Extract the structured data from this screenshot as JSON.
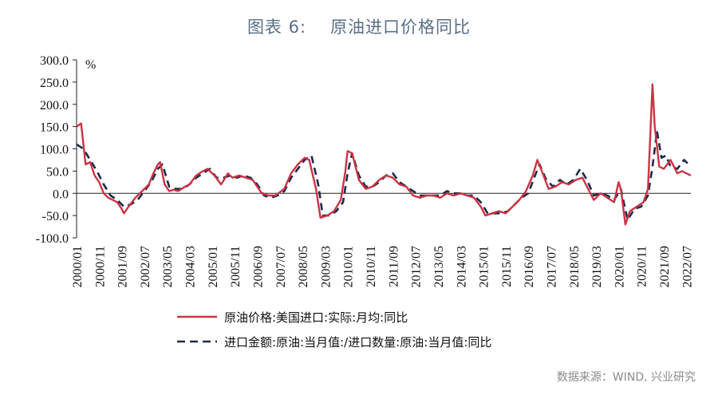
{
  "title": {
    "prefix": "图表 6:",
    "text": "原油进口价格同比"
  },
  "source": "数据来源：WIND, 兴业研究",
  "chart_data": {
    "type": "line",
    "ylabel": "%",
    "ylim": [
      -100,
      300
    ],
    "yticks": [
      "300.0",
      "250.0",
      "200.0",
      "150.0",
      "100.0",
      "50.0",
      "0.0",
      "-50.0",
      "-100.0"
    ],
    "xticks": [
      "2000/01",
      "2000/11",
      "2001/09",
      "2002/07",
      "2003/05",
      "2004/03",
      "2005/01",
      "2005/11",
      "2006/09",
      "2007/07",
      "2008/05",
      "2009/03",
      "2010/01",
      "2010/11",
      "2011/09",
      "2012/07",
      "2013/05",
      "2014/03",
      "2015/01",
      "2015/11",
      "2016/09",
      "2017/07",
      "2018/05",
      "2019/03",
      "2020/01",
      "2020/11",
      "2021/09",
      "2022/07"
    ],
    "series": [
      {
        "name": "原油价格:美国进口:实际:月均:同比",
        "color": "#cc3344",
        "style": "solid",
        "points": [
          [
            "2000/01",
            150
          ],
          [
            "2000/03",
            157
          ],
          [
            "2000/05",
            65
          ],
          [
            "2000/07",
            70
          ],
          [
            "2000/09",
            40
          ],
          [
            "2000/11",
            25
          ],
          [
            "2001/01",
            0
          ],
          [
            "2001/03",
            -10
          ],
          [
            "2001/05",
            -15
          ],
          [
            "2001/07",
            -20
          ],
          [
            "2001/09",
            -35
          ],
          [
            "2001/10",
            -45
          ],
          [
            "2001/12",
            -30
          ],
          [
            "2002/03",
            -10
          ],
          [
            "2002/06",
            5
          ],
          [
            "2002/09",
            20
          ],
          [
            "2002/11",
            45
          ],
          [
            "2003/01",
            65
          ],
          [
            "2003/02",
            70
          ],
          [
            "2003/04",
            20
          ],
          [
            "2003/06",
            5
          ],
          [
            "2003/08",
            8
          ],
          [
            "2003/10",
            5
          ],
          [
            "2004/01",
            15
          ],
          [
            "2004/03",
            20
          ],
          [
            "2004/06",
            40
          ],
          [
            "2004/09",
            50
          ],
          [
            "2004/11",
            55
          ],
          [
            "2005/02",
            40
          ],
          [
            "2005/05",
            20
          ],
          [
            "2005/08",
            45
          ],
          [
            "2005/10",
            35
          ],
          [
            "2006/01",
            40
          ],
          [
            "2006/04",
            35
          ],
          [
            "2006/07",
            30
          ],
          [
            "2006/09",
            15
          ],
          [
            "2006/11",
            0
          ],
          [
            "2007/02",
            -5
          ],
          [
            "2007/05",
            -5
          ],
          [
            "2007/09",
            10
          ],
          [
            "2007/12",
            45
          ],
          [
            "2008/03",
            65
          ],
          [
            "2008/06",
            80
          ],
          [
            "2008/08",
            75
          ],
          [
            "2008/11",
            10
          ],
          [
            "2009/01",
            -55
          ],
          [
            "2009/04",
            -50
          ],
          [
            "2009/07",
            -40
          ],
          [
            "2009/10",
            -15
          ],
          [
            "2009/12",
            50
          ],
          [
            "2010/01",
            95
          ],
          [
            "2010/03",
            90
          ],
          [
            "2010/06",
            30
          ],
          [
            "2010/09",
            10
          ],
          [
            "2010/12",
            15
          ],
          [
            "2011/03",
            30
          ],
          [
            "2011/06",
            40
          ],
          [
            "2011/09",
            35
          ],
          [
            "2011/12",
            20
          ],
          [
            "2012/03",
            15
          ],
          [
            "2012/06",
            -5
          ],
          [
            "2012/09",
            -10
          ],
          [
            "2012/12",
            -5
          ],
          [
            "2013/03",
            -5
          ],
          [
            "2013/06",
            -10
          ],
          [
            "2013/09",
            0
          ],
          [
            "2013/12",
            -5
          ],
          [
            "2014/03",
            0
          ],
          [
            "2014/06",
            -5
          ],
          [
            "2014/09",
            -10
          ],
          [
            "2014/12",
            -30
          ],
          [
            "2015/02",
            -50
          ],
          [
            "2015/05",
            -45
          ],
          [
            "2015/08",
            -40
          ],
          [
            "2015/11",
            -45
          ],
          [
            "2016/02",
            -30
          ],
          [
            "2016/05",
            -15
          ],
          [
            "2016/08",
            5
          ],
          [
            "2016/11",
            40
          ],
          [
            "2017/01",
            75
          ],
          [
            "2017/03",
            50
          ],
          [
            "2017/06",
            10
          ],
          [
            "2017/09",
            15
          ],
          [
            "2017/12",
            25
          ],
          [
            "2018/03",
            20
          ],
          [
            "2018/06",
            30
          ],
          [
            "2018/09",
            35
          ],
          [
            "2018/12",
            5
          ],
          [
            "2019/02",
            -15
          ],
          [
            "2019/05",
            0
          ],
          [
            "2019/08",
            -10
          ],
          [
            "2019/11",
            -20
          ],
          [
            "2020/01",
            25
          ],
          [
            "2020/02",
            10
          ],
          [
            "2020/04",
            -70
          ],
          [
            "2020/06",
            -40
          ],
          [
            "2020/09",
            -30
          ],
          [
            "2020/12",
            -20
          ],
          [
            "2021/02",
            10
          ],
          [
            "2021/04",
            245
          ],
          [
            "2021/05",
            150
          ],
          [
            "2021/07",
            60
          ],
          [
            "2021/09",
            55
          ],
          [
            "2021/12",
            75
          ],
          [
            "2022/03",
            45
          ],
          [
            "2022/05",
            50
          ],
          [
            "2022/07",
            45
          ],
          [
            "2022/09",
            40
          ]
        ]
      },
      {
        "name": "进口金额:原油:当月值:/进口数量:原油:当月值:同比",
        "color": "#1f2a48",
        "style": "dashed",
        "points": [
          [
            "2000/01",
            110
          ],
          [
            "2000/04",
            100
          ],
          [
            "2000/07",
            75
          ],
          [
            "2000/10",
            50
          ],
          [
            "2001/01",
            20
          ],
          [
            "2001/04",
            -5
          ],
          [
            "2001/07",
            -15
          ],
          [
            "2001/10",
            -30
          ],
          [
            "2002/01",
            -25
          ],
          [
            "2002/04",
            -15
          ],
          [
            "2002/07",
            5
          ],
          [
            "2002/10",
            25
          ],
          [
            "2003/01",
            55
          ],
          [
            "2003/03",
            65
          ],
          [
            "2003/06",
            15
          ],
          [
            "2003/09",
            10
          ],
          [
            "2003/12",
            10
          ],
          [
            "2004/03",
            20
          ],
          [
            "2004/06",
            35
          ],
          [
            "2004/09",
            45
          ],
          [
            "2004/12",
            55
          ],
          [
            "2005/03",
            35
          ],
          [
            "2005/06",
            35
          ],
          [
            "2005/09",
            40
          ],
          [
            "2005/12",
            35
          ],
          [
            "2006/03",
            40
          ],
          [
            "2006/06",
            35
          ],
          [
            "2006/09",
            20
          ],
          [
            "2006/12",
            -5
          ],
          [
            "2007/03",
            -10
          ],
          [
            "2007/06",
            -5
          ],
          [
            "2007/09",
            5
          ],
          [
            "2007/12",
            35
          ],
          [
            "2008/03",
            55
          ],
          [
            "2008/06",
            75
          ],
          [
            "2008/09",
            85
          ],
          [
            "2008/12",
            20
          ],
          [
            "2009/02",
            -50
          ],
          [
            "2009/05",
            -50
          ],
          [
            "2009/08",
            -40
          ],
          [
            "2009/11",
            -20
          ],
          [
            "2010/01",
            45
          ],
          [
            "2010/03",
            90
          ],
          [
            "2010/06",
            40
          ],
          [
            "2010/09",
            15
          ],
          [
            "2010/12",
            15
          ],
          [
            "2011/03",
            25
          ],
          [
            "2011/06",
            40
          ],
          [
            "2011/09",
            45
          ],
          [
            "2011/12",
            25
          ],
          [
            "2012/03",
            15
          ],
          [
            "2012/06",
            5
          ],
          [
            "2012/09",
            -5
          ],
          [
            "2012/12",
            -5
          ],
          [
            "2013/03",
            -5
          ],
          [
            "2013/06",
            -5
          ],
          [
            "2013/09",
            5
          ],
          [
            "2013/12",
            0
          ],
          [
            "2014/03",
            0
          ],
          [
            "2014/06",
            -5
          ],
          [
            "2014/09",
            -5
          ],
          [
            "2014/12",
            -20
          ],
          [
            "2015/03",
            -45
          ],
          [
            "2015/06",
            -45
          ],
          [
            "2015/09",
            -45
          ],
          [
            "2015/12",
            -40
          ],
          [
            "2016/03",
            -25
          ],
          [
            "2016/06",
            -10
          ],
          [
            "2016/09",
            0
          ],
          [
            "2016/12",
            40
          ],
          [
            "2017/02",
            65
          ],
          [
            "2017/05",
            30
          ],
          [
            "2017/08",
            15
          ],
          [
            "2017/11",
            30
          ],
          [
            "2018/02",
            20
          ],
          [
            "2018/05",
            30
          ],
          [
            "2018/08",
            55
          ],
          [
            "2018/11",
            30
          ],
          [
            "2019/02",
            -5
          ],
          [
            "2019/05",
            0
          ],
          [
            "2019/08",
            -5
          ],
          [
            "2019/11",
            -15
          ],
          [
            "2020/02",
            10
          ],
          [
            "2020/05",
            -60
          ],
          [
            "2020/08",
            -35
          ],
          [
            "2020/11",
            -30
          ],
          [
            "2021/02",
            -5
          ],
          [
            "2021/04",
            60
          ],
          [
            "2021/06",
            140
          ],
          [
            "2021/08",
            80
          ],
          [
            "2021/10",
            85
          ],
          [
            "2021/12",
            60
          ],
          [
            "2022/03",
            55
          ],
          [
            "2022/06",
            75
          ],
          [
            "2022/09",
            60
          ]
        ]
      }
    ],
    "legend": "bottom"
  }
}
